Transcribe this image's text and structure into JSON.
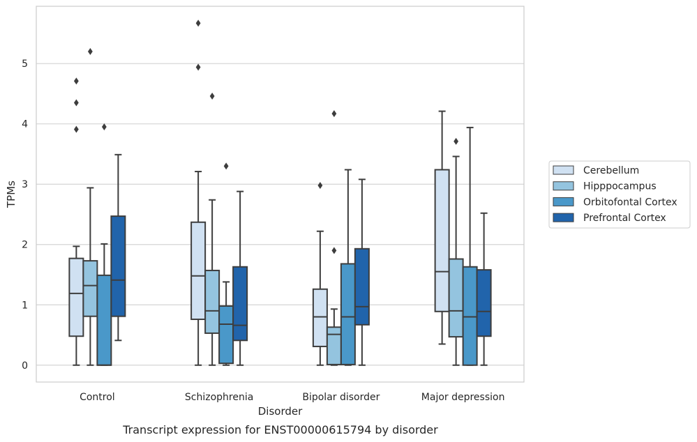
{
  "chart_data": {
    "type": "box",
    "title": "",
    "caption": "Transcript expression for ENST00000615794 by disorder",
    "xlabel": "Disorder",
    "ylabel": "TPMs",
    "ylim": [
      -0.28,
      5.95
    ],
    "yticks": [
      0,
      1,
      2,
      3,
      4,
      5
    ],
    "grid": "horizontal",
    "legend_position": "right",
    "categories": [
      "Control",
      "Schizophrenia",
      "Bipolar disorder",
      "Major depression"
    ],
    "series": [
      {
        "name": "Cerebellum",
        "color": "#d0e1f2",
        "boxes": [
          {
            "whisker_low": 0,
            "q1": 0.48,
            "median": 1.19,
            "q3": 1.77,
            "whisker_high": 1.97,
            "outliers": [
              3.91,
              4.35,
              4.71
            ]
          },
          {
            "whisker_low": 0,
            "q1": 0.76,
            "median": 1.48,
            "q3": 2.37,
            "whisker_high": 3.21,
            "outliers": [
              4.94,
              5.67
            ]
          },
          {
            "whisker_low": 0,
            "q1": 0.31,
            "median": 0.8,
            "q3": 1.26,
            "whisker_high": 2.22,
            "outliers": [
              2.98
            ]
          },
          {
            "whisker_low": 0.35,
            "q1": 0.89,
            "median": 1.55,
            "q3": 3.24,
            "whisker_high": 4.21,
            "outliers": []
          }
        ]
      },
      {
        "name": "Hipppocampus",
        "color": "#94c4df",
        "boxes": [
          {
            "whisker_low": 0,
            "q1": 0.81,
            "median": 1.32,
            "q3": 1.73,
            "whisker_high": 2.94,
            "outliers": [
              5.2
            ]
          },
          {
            "whisker_low": 0,
            "q1": 0.53,
            "median": 0.9,
            "q3": 1.57,
            "whisker_high": 2.74,
            "outliers": [
              4.46
            ]
          },
          {
            "whisker_low": 0,
            "q1": 0.01,
            "median": 0.51,
            "q3": 0.63,
            "whisker_high": 0.93,
            "outliers": [
              1.9,
              4.17
            ]
          },
          {
            "whisker_low": 0,
            "q1": 0.47,
            "median": 0.9,
            "q3": 1.76,
            "whisker_high": 3.46,
            "outliers": [
              3.71
            ]
          }
        ]
      },
      {
        "name": "Orbitofontal Cortex",
        "color": "#4a98c9",
        "boxes": [
          {
            "whisker_low": 0,
            "q1": 0,
            "median": 0,
            "q3": 1.49,
            "whisker_high": 2.01,
            "outliers": [
              3.95
            ]
          },
          {
            "whisker_low": 0,
            "q1": 0.03,
            "median": 0.68,
            "q3": 0.98,
            "whisker_high": 1.38,
            "outliers": [
              3.3
            ]
          },
          {
            "whisker_low": 0,
            "q1": 0.01,
            "median": 0.8,
            "q3": 1.68,
            "whisker_high": 3.24,
            "outliers": []
          },
          {
            "whisker_low": 0,
            "q1": 0,
            "median": 0.8,
            "q3": 1.63,
            "whisker_high": 3.94,
            "outliers": []
          }
        ]
      },
      {
        "name": "Prefrontal Cortex",
        "color": "#2164ab",
        "boxes": [
          {
            "whisker_low": 0.41,
            "q1": 0.81,
            "median": 1.41,
            "q3": 2.47,
            "whisker_high": 3.49,
            "outliers": []
          },
          {
            "whisker_low": 0,
            "q1": 0.41,
            "median": 0.66,
            "q3": 1.63,
            "whisker_high": 2.88,
            "outliers": []
          },
          {
            "whisker_low": 0,
            "q1": 0.67,
            "median": 0.97,
            "q3": 1.93,
            "whisker_high": 3.08,
            "outliers": []
          },
          {
            "whisker_low": 0,
            "q1": 0.48,
            "median": 0.89,
            "q3": 1.58,
            "whisker_high": 2.52,
            "outliers": []
          }
        ]
      }
    ]
  }
}
